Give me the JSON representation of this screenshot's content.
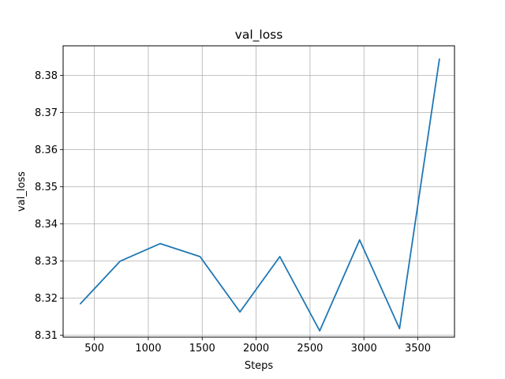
{
  "chart_data": {
    "type": "line",
    "title": "val_loss",
    "xlabel": "Steps",
    "ylabel": "val_loss",
    "xlim": [
      210,
      3840
    ],
    "ylim": [
      8.3095,
      8.388
    ],
    "xticks": [
      500,
      1000,
      1500,
      2000,
      2500,
      3000,
      3500
    ],
    "xtick_labels": [
      "500",
      "1000",
      "1500",
      "2000",
      "2500",
      "3000",
      "3500"
    ],
    "yticks": [
      8.31,
      8.32,
      8.33,
      8.34,
      8.35,
      8.36,
      8.37,
      8.38
    ],
    "ytick_labels": [
      "8.31",
      "8.32",
      "8.33",
      "8.34",
      "8.35",
      "8.36",
      "8.37",
      "8.38"
    ],
    "grid": true,
    "line_color": "#1f77b4",
    "series": [
      {
        "x": [
          370,
          740,
          1110,
          1480,
          1850,
          2220,
          2590,
          2960,
          3330,
          3700
        ],
        "y": [
          8.3185,
          8.33,
          8.3347,
          8.3312,
          8.3163,
          8.3312,
          8.3112,
          8.3357,
          8.3118,
          8.3844
        ]
      }
    ]
  }
}
